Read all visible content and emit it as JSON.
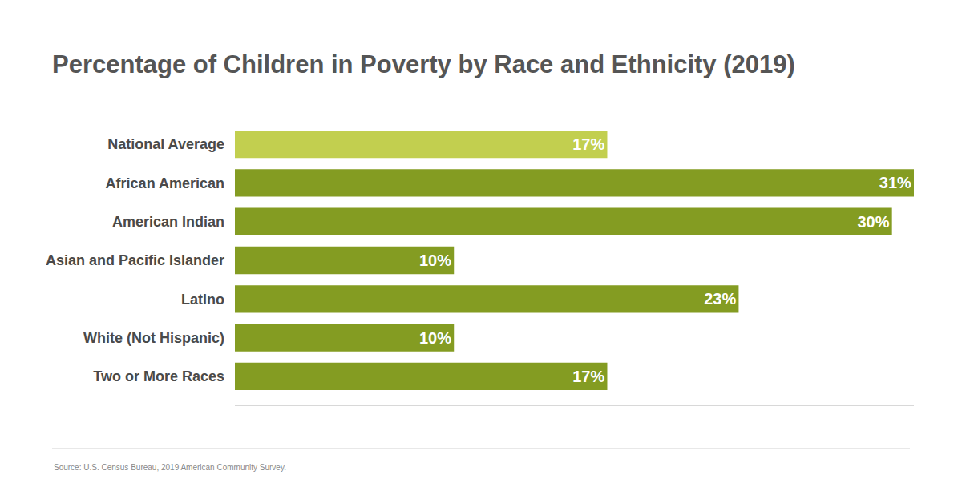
{
  "chart_data": {
    "type": "bar",
    "orientation": "horizontal",
    "title": "Percentage of Children in Poverty by Race and Ethnicity (2019)",
    "source": "Source: U.S. Census Bureau, 2019 American Community Survey.",
    "categories": [
      "National Average",
      "African American",
      "American Indian",
      "Asian and Pacific Islander",
      "Latino",
      "White (Not Hispanic)",
      "Two or More Races"
    ],
    "values": [
      17,
      31,
      30,
      10,
      23,
      10,
      17
    ],
    "value_labels": [
      "17%",
      "31%",
      "30%",
      "10%",
      "23%",
      "10%",
      "17%"
    ],
    "colors": [
      "#c2cf4f",
      "#849c22",
      "#849c22",
      "#849c22",
      "#849c22",
      "#849c22",
      "#849c22"
    ],
    "xlim": [
      0,
      31
    ],
    "data_labels": true,
    "tick_labels": "y",
    "grid": false
  }
}
